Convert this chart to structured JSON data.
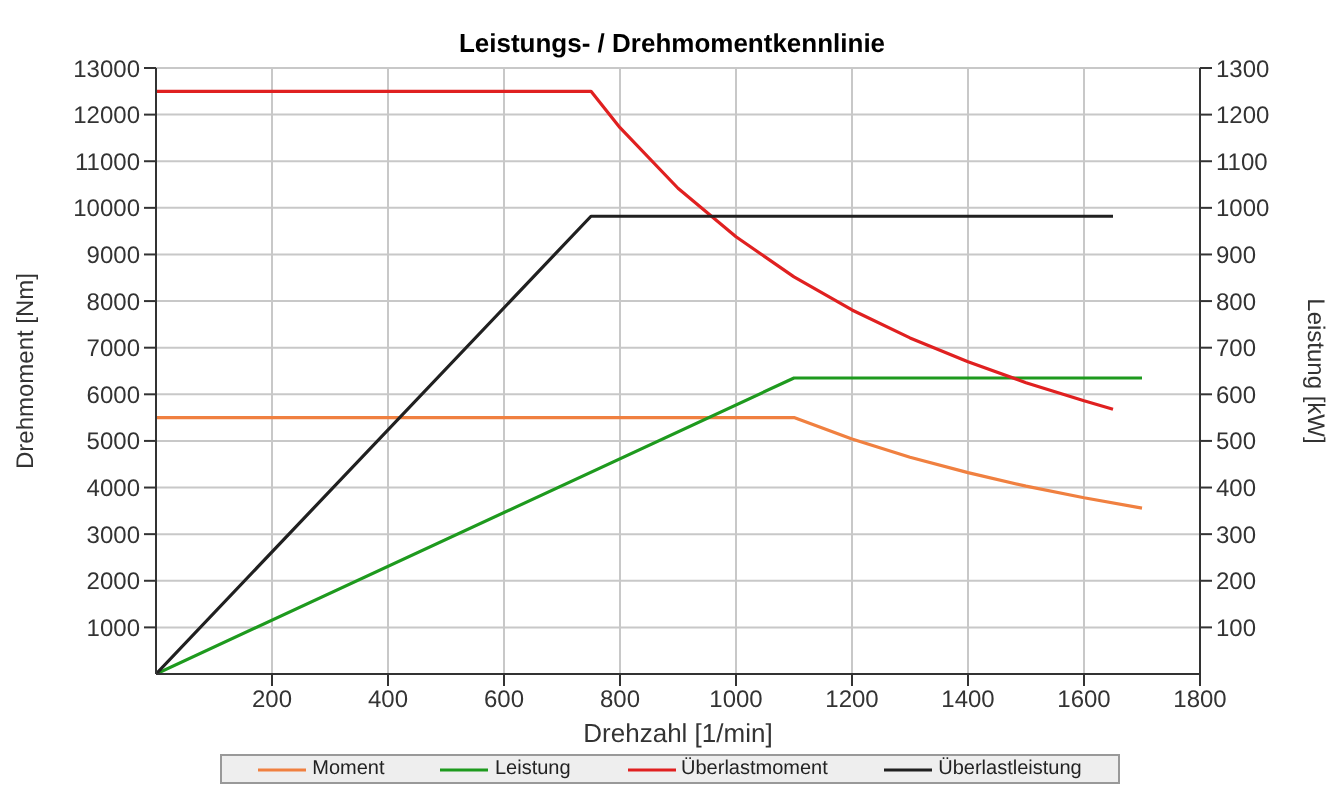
{
  "chart_data": {
    "type": "line",
    "title": "Leistungs- / Drehmomentkennlinie",
    "xlabel": "Drehzahl [1/min]",
    "ylabel": "Drehmoment [Nm]",
    "y2label": "Leistung [kW]",
    "xlim": [
      0,
      1800
    ],
    "xticks": [
      200,
      400,
      600,
      800,
      1000,
      1200,
      1400,
      1600,
      1800
    ],
    "ylim": [
      0,
      13000
    ],
    "yticks": [
      1000,
      2000,
      3000,
      4000,
      5000,
      6000,
      7000,
      8000,
      9000,
      10000,
      11000,
      12000,
      13000
    ],
    "y2lim": [
      0,
      1300
    ],
    "y2ticks": [
      100,
      200,
      300,
      400,
      500,
      600,
      700,
      800,
      900,
      1000,
      1100,
      1200,
      1300
    ],
    "grid": true,
    "legend": "bottom",
    "marker": "none",
    "line_style": "solid",
    "series": [
      {
        "name": "Moment",
        "color": "#f08040",
        "x": [
          0,
          1100,
          1200,
          1300,
          1400,
          1500,
          1600,
          1700
        ],
        "values": [
          5500,
          5500,
          5040,
          4650,
          4320,
          4030,
          3780,
          3560
        ]
      },
      {
        "name": "Leistung",
        "color": "#1e9a1e",
        "axis": "y2",
        "x": [
          0,
          1100,
          1700
        ],
        "values": [
          0,
          635,
          635
        ]
      },
      {
        "name": "Überlastmoment",
        "color": "#e02020",
        "x": [
          0,
          750,
          800,
          900,
          1000,
          1100,
          1200,
          1300,
          1400,
          1500,
          1600,
          1650
        ],
        "values": [
          12500,
          12500,
          11720,
          10420,
          9380,
          8520,
          7810,
          7210,
          6700,
          6250,
          5860,
          5680
        ]
      },
      {
        "name": "Überlastleistung",
        "color": "#202020",
        "axis": "y2",
        "x": [
          0,
          750,
          1650
        ],
        "values": [
          0,
          982,
          982
        ]
      }
    ]
  }
}
